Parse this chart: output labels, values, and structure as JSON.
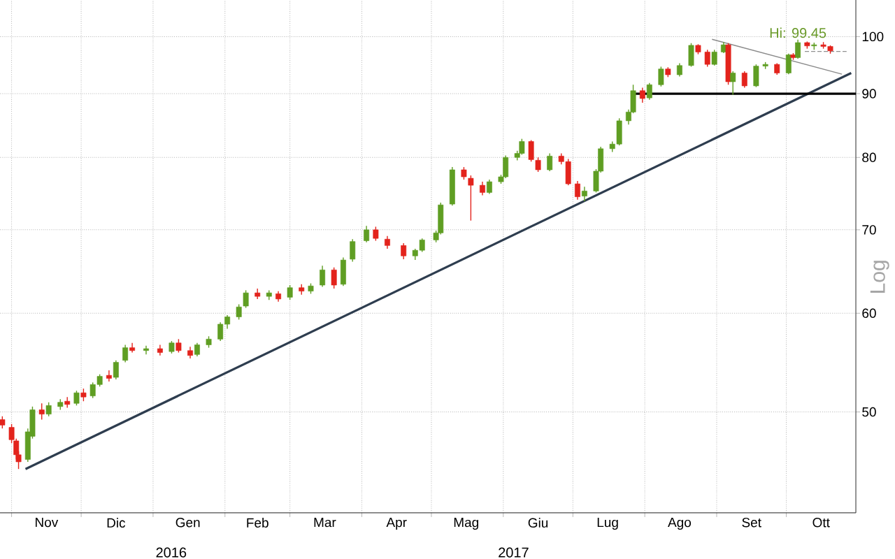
{
  "chart_data": {
    "type": "candlestick",
    "ylabel": "Log",
    "log": true,
    "grid": true,
    "xlim": [
      "2016-10-27",
      "2017-10-31"
    ],
    "ylim": [
      41.5,
      107
    ],
    "yticks": [
      50,
      60,
      70,
      80,
      90,
      100
    ],
    "xticks": [
      {
        "value": "2016-11-01",
        "label": null
      },
      {
        "value": "2016-11-16",
        "label": "Nov"
      },
      {
        "value": "2016-12-01",
        "label": null
      },
      {
        "value": "2016-12-16",
        "label": "Dic"
      },
      {
        "value": "2017-01-01",
        "label": null
      },
      {
        "value": "2017-01-16",
        "label": "Gen"
      },
      {
        "value": "2017-02-01",
        "label": null
      },
      {
        "value": "2017-02-15",
        "label": "Feb"
      },
      {
        "value": "2017-03-01",
        "label": null
      },
      {
        "value": "2017-03-16",
        "label": "Mar"
      },
      {
        "value": "2017-04-01",
        "label": null
      },
      {
        "value": "2017-04-16",
        "label": "Apr"
      },
      {
        "value": "2017-05-01",
        "label": null
      },
      {
        "value": "2017-05-16",
        "label": "Mag"
      },
      {
        "value": "2017-06-01",
        "label": null
      },
      {
        "value": "2017-06-16",
        "label": "Giu"
      },
      {
        "value": "2017-07-01",
        "label": null
      },
      {
        "value": "2017-07-16",
        "label": "Lug"
      },
      {
        "value": "2017-08-01",
        "label": null
      },
      {
        "value": "2017-08-16",
        "label": "Ago"
      },
      {
        "value": "2017-09-01",
        "label": null
      },
      {
        "value": "2017-09-16",
        "label": "Set"
      },
      {
        "value": "2017-10-01",
        "label": null
      },
      {
        "value": "2017-10-16",
        "label": "Ott"
      }
    ],
    "annotations": [
      {
        "text": "Hi: 99.45",
        "x": "2017-10-06",
        "y": 99.45
      },
      "2016",
      "2017"
    ],
    "series": [
      {
        "x": [
          "2016-10-28",
          "2016-11-01",
          "2016-11-03",
          "2016-11-04",
          "2016-11-08",
          "2016-11-10",
          "2016-11-14",
          "2016-11-17",
          "2016-11-22",
          "2016-11-25",
          "2016-11-29",
          "2016-12-02",
          "2016-12-06",
          "2016-12-09",
          "2016-12-13",
          "2016-12-16",
          "2016-12-20",
          "2016-12-23",
          "2016-12-29",
          "2017-01-04",
          "2017-01-09",
          "2017-01-12",
          "2017-01-17",
          "2017-01-20",
          "2017-01-25",
          "2017-01-30",
          "2017-02-02",
          "2017-02-07",
          "2017-02-10",
          "2017-02-15",
          "2017-02-20",
          "2017-02-24",
          "2017-03-01",
          "2017-03-06",
          "2017-03-10",
          "2017-03-15",
          "2017-03-20",
          "2017-03-24",
          "2017-03-28",
          "2017-04-03",
          "2017-04-07",
          "2017-04-12",
          "2017-04-19",
          "2017-04-24",
          "2017-04-27",
          "2017-05-03",
          "2017-05-05",
          "2017-05-10",
          "2017-05-15",
          "2017-05-18",
          "2017-05-23",
          "2017-05-26",
          "2017-05-31",
          "2017-06-02",
          "2017-06-07",
          "2017-06-09",
          "2017-06-13",
          "2017-06-16",
          "2017-06-21",
          "2017-06-26",
          "2017-06-29",
          "2017-07-03",
          "2017-07-06",
          "2017-07-11",
          "2017-07-13",
          "2017-07-18",
          "2017-07-21",
          "2017-07-25",
          "2017-07-27",
          "2017-07-31",
          "2017-08-03",
          "2017-08-08",
          "2017-08-11",
          "2017-08-16",
          "2017-08-21",
          "2017-08-24",
          "2017-08-28",
          "2017-08-31",
          "2017-09-04",
          "2017-09-06",
          "2017-09-08",
          "2017-09-13",
          "2017-09-18",
          "2017-09-22",
          "2017-09-27",
          "2017-10-02",
          "2017-10-04",
          "2017-10-06",
          "2017-10-10",
          "2017-10-13",
          "2017-10-17",
          "2017-10-20"
        ],
        "ohlc": [
          [
            49.3,
            49.6,
            48.5,
            48.8
          ],
          [
            48.6,
            48.9,
            47.2,
            47.5
          ],
          [
            47.4,
            47.6,
            45.8,
            46.2
          ],
          [
            46.2,
            46.5,
            45.0,
            45.6
          ],
          [
            45.8,
            48.5,
            45.6,
            48.2
          ],
          [
            47.8,
            50.5,
            47.6,
            50.2
          ],
          [
            50.2,
            50.8,
            49.3,
            49.8
          ],
          [
            49.8,
            50.9,
            49.6,
            50.6
          ],
          [
            50.5,
            51.2,
            50.2,
            50.9
          ],
          [
            51.0,
            51.4,
            50.4,
            50.7
          ],
          [
            50.8,
            52.0,
            50.6,
            51.8
          ],
          [
            51.8,
            52.2,
            51.0,
            51.4
          ],
          [
            51.5,
            52.8,
            51.3,
            52.6
          ],
          [
            52.6,
            53.6,
            52.4,
            53.4
          ],
          [
            53.5,
            54.0,
            52.9,
            53.2
          ],
          [
            53.3,
            55.0,
            53.1,
            54.8
          ],
          [
            55.0,
            56.6,
            54.8,
            56.3
          ],
          [
            56.3,
            56.8,
            55.8,
            56.0
          ],
          [
            56.0,
            56.5,
            55.6,
            56.2
          ],
          [
            56.2,
            56.6,
            55.5,
            55.8
          ],
          [
            55.9,
            57.0,
            55.7,
            56.8
          ],
          [
            56.8,
            57.2,
            55.8,
            56.0
          ],
          [
            56.0,
            56.4,
            55.2,
            55.5
          ],
          [
            55.6,
            56.8,
            55.4,
            56.6
          ],
          [
            56.6,
            57.5,
            56.3,
            57.2
          ],
          [
            57.2,
            59.0,
            57.0,
            58.8
          ],
          [
            58.8,
            59.8,
            58.3,
            59.6
          ],
          [
            59.6,
            61.0,
            59.3,
            60.7
          ],
          [
            60.8,
            62.6,
            60.6,
            62.3
          ],
          [
            62.3,
            62.8,
            61.6,
            61.9
          ],
          [
            61.9,
            62.6,
            61.5,
            62.3
          ],
          [
            62.2,
            62.5,
            61.3,
            61.6
          ],
          [
            61.8,
            63.2,
            61.5,
            62.9
          ],
          [
            62.9,
            63.3,
            62.1,
            62.5
          ],
          [
            62.5,
            63.4,
            62.2,
            63.1
          ],
          [
            63.2,
            65.5,
            63.0,
            65.0
          ],
          [
            65.0,
            65.3,
            62.8,
            63.2
          ],
          [
            63.3,
            66.5,
            63.1,
            66.2
          ],
          [
            66.3,
            68.8,
            66.0,
            68.5
          ],
          [
            68.6,
            70.5,
            68.4,
            70.0
          ],
          [
            70.0,
            70.4,
            68.6,
            68.9
          ],
          [
            68.8,
            69.2,
            67.6,
            68.0
          ],
          [
            68.0,
            68.3,
            66.3,
            66.7
          ],
          [
            66.7,
            67.6,
            66.2,
            67.4
          ],
          [
            67.4,
            68.9,
            67.2,
            68.7
          ],
          [
            68.7,
            69.9,
            68.4,
            69.6
          ],
          [
            69.6,
            73.6,
            69.4,
            73.3
          ],
          [
            73.4,
            78.6,
            73.2,
            78.2
          ],
          [
            78.2,
            78.6,
            76.8,
            77.2
          ],
          [
            77.0,
            77.4,
            71.2,
            76.0
          ],
          [
            76.0,
            76.5,
            74.6,
            75.0
          ],
          [
            75.0,
            76.8,
            74.8,
            76.5
          ],
          [
            76.5,
            77.5,
            76.2,
            77.2
          ],
          [
            77.2,
            80.3,
            77.0,
            80.0
          ],
          [
            80.0,
            81.0,
            79.6,
            80.6
          ],
          [
            80.6,
            82.8,
            80.4,
            82.4
          ],
          [
            82.4,
            82.6,
            79.4,
            79.7
          ],
          [
            79.6,
            80.0,
            77.9,
            78.2
          ],
          [
            78.2,
            80.6,
            78.0,
            80.2
          ],
          [
            80.2,
            80.6,
            79.0,
            79.4
          ],
          [
            79.4,
            79.8,
            76.0,
            76.2
          ],
          [
            76.2,
            76.6,
            74.0,
            74.4
          ],
          [
            74.5,
            75.8,
            73.8,
            75.2
          ],
          [
            75.2,
            78.3,
            75.0,
            78.0
          ],
          [
            78.0,
            81.6,
            77.8,
            81.3
          ],
          [
            81.3,
            82.4,
            80.8,
            82.0
          ],
          [
            82.0,
            86.0,
            81.8,
            85.6
          ],
          [
            85.6,
            87.4,
            85.0,
            87.0
          ],
          [
            87.0,
            91.5,
            86.8,
            90.5
          ],
          [
            90.5,
            91.0,
            88.5,
            89.2
          ],
          [
            89.3,
            91.8,
            89.0,
            91.5
          ],
          [
            91.5,
            94.6,
            91.2,
            94.2
          ],
          [
            94.2,
            94.5,
            92.8,
            93.2
          ],
          [
            93.2,
            95.2,
            92.9,
            94.8
          ],
          [
            94.8,
            98.8,
            94.6,
            98.4
          ],
          [
            98.4,
            98.6,
            96.8,
            97.2
          ],
          [
            97.2,
            97.6,
            94.6,
            95.0
          ],
          [
            95.0,
            97.6,
            94.8,
            97.2
          ],
          [
            97.2,
            99.0,
            97.0,
            98.5
          ],
          [
            98.5,
            98.8,
            91.5,
            92.0
          ],
          [
            92.0,
            93.8,
            89.8,
            93.5
          ],
          [
            93.5,
            93.8,
            91.0,
            91.3
          ],
          [
            91.3,
            95.0,
            91.1,
            94.7
          ],
          [
            94.7,
            95.4,
            94.2,
            95.0
          ],
          [
            95.0,
            95.2,
            93.2,
            93.5
          ],
          [
            93.5,
            96.9,
            93.3,
            96.7
          ],
          [
            96.7,
            97.0,
            95.8,
            96.2
          ],
          [
            96.2,
            99.45,
            96.0,
            98.9
          ],
          [
            98.9,
            99.1,
            97.8,
            98.3
          ],
          [
            98.3,
            98.9,
            97.6,
            98.5
          ],
          [
            98.5,
            99.0,
            97.8,
            98.2
          ],
          [
            98.2,
            98.4,
            96.9,
            97.4
          ]
        ],
        "colors": [
          "#e3231c",
          "#e3231c",
          "#e3231c",
          "#e3231c",
          "#5f9e23",
          "#5f9e23",
          "#e3231c",
          "#5f9e23",
          "#5f9e23",
          "#e3231c",
          "#5f9e23",
          "#e3231c",
          "#5f9e23",
          "#5f9e23",
          "#e3231c",
          "#5f9e23",
          "#5f9e23",
          "#e3231c",
          "#5f9e23",
          "#e3231c",
          "#5f9e23",
          "#e3231c",
          "#e3231c",
          "#5f9e23",
          "#5f9e23",
          "#5f9e23",
          "#5f9e23",
          "#5f9e23",
          "#5f9e23",
          "#e3231c",
          "#5f9e23",
          "#e3231c",
          "#5f9e23",
          "#e3231c",
          "#5f9e23",
          "#5f9e23",
          "#e3231c",
          "#5f9e23",
          "#5f9e23",
          "#5f9e23",
          "#e3231c",
          "#e3231c",
          "#e3231c",
          "#5f9e23",
          "#5f9e23",
          "#5f9e23",
          "#5f9e23",
          "#5f9e23",
          "#e3231c",
          "#e3231c",
          "#e3231c",
          "#5f9e23",
          "#5f9e23",
          "#5f9e23",
          "#5f9e23",
          "#5f9e23",
          "#e3231c",
          "#e3231c",
          "#5f9e23",
          "#e3231c",
          "#e3231c",
          "#e3231c",
          "#5f9e23",
          "#5f9e23",
          "#5f9e23",
          "#5f9e23",
          "#5f9e23",
          "#5f9e23",
          "#5f9e23",
          "#e3231c",
          "#5f9e23",
          "#5f9e23",
          "#e3231c",
          "#5f9e23",
          "#5f9e23",
          "#e3231c",
          "#e3231c",
          "#5f9e23",
          "#5f9e23",
          "#e3231c",
          "#5f9e23",
          "#e3231c",
          "#5f9e23",
          "#5f9e23",
          "#e3231c",
          "#5f9e23",
          "#e3231c",
          "#5f9e23",
          "#e3231c",
          "#5f9e23",
          "#e3231c",
          "#e3231c"
        ]
      },
      {
        "type": "line",
        "x": [
          "2016-11-07",
          "2017-10-29"
        ],
        "values": [
          45.0,
          93.5
        ],
        "color": "#2e3d4f"
      },
      {
        "type": "line",
        "x": [
          "2017-07-26",
          "2017-10-31"
        ],
        "values": [
          90,
          90
        ],
        "color": "#000000"
      },
      {
        "type": "line",
        "x": [
          "2017-08-30",
          "2017-10-25"
        ],
        "values": [
          99.5,
          93.3
        ],
        "color": "#8a8a8a"
      },
      {
        "type": "line",
        "x": [
          "2017-10-09",
          "2017-10-27"
        ],
        "values": [
          97.3,
          97.3
        ],
        "color": "#909090",
        "line_style": "dashed"
      }
    ]
  }
}
